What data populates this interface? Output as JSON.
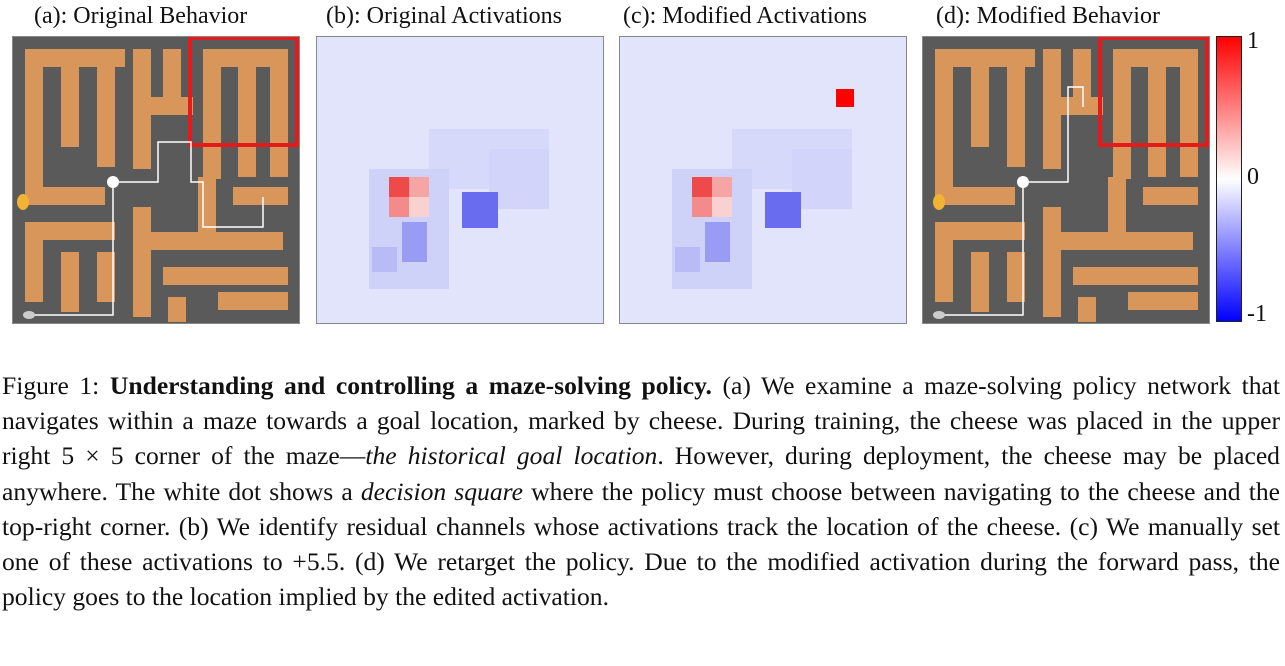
{
  "panels": {
    "a": {
      "title": "(a): Original Behavior"
    },
    "b": {
      "title": "(b): Original Activations"
    },
    "c": {
      "title": "(c): Modified Activations"
    },
    "d": {
      "title": "(d): Modified Behavior"
    }
  },
  "colorbar": {
    "max_label": "1",
    "mid_label": "0",
    "min_label": "-1",
    "colors": {
      "max": "#ff0000",
      "mid": "#ffffff",
      "min": "#0000ff"
    }
  },
  "caption": {
    "prefix": "Figure 1: ",
    "title": "Understanding and controlling a maze-solving policy.",
    "s1": " (a) We examine a maze-solving policy network that navigates within a maze towards a goal location, marked by cheese. During training, the cheese was placed in the upper right ",
    "math": "5 × 5",
    "s2": " corner of the maze—",
    "em1": "the historical goal location",
    "s3": ". However, during deployment, the cheese may be placed anywhere. The white dot shows a ",
    "em2": "decision square",
    "s4": " where the policy must choose between navigating to the cheese and the top-right corner. (b) We identify residual channels whose activations track the location of the cheese. (c) We manually set one of these activations to +5.5. (d) We retarget the policy. Due to the modified activation during the forward pass, the policy goes to the location implied by the edited activation."
  },
  "colors": {
    "path": "#d8965b",
    "wall": "#5a5a5a",
    "goal_box": "#e51a1a",
    "arrow": "#ffffff"
  }
}
